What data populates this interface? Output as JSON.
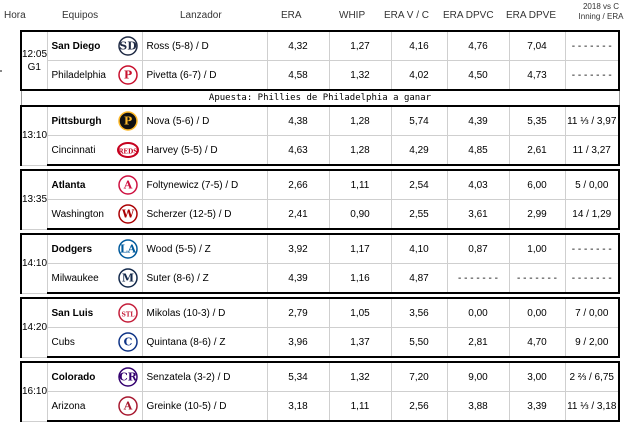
{
  "headers": {
    "hora": "Hora",
    "equipos": "Equipos",
    "lanzador": "Lanzador",
    "era": "ERA",
    "whip": "WHIP",
    "era_vc": "ERA V / C",
    "era_dpvc": "ERA DPVC",
    "era_dpve": "ERA DPVE",
    "last_line1": "2018 vs C",
    "last_line2": "Inning / ERA"
  },
  "bet_text": "Apuesta: Phillies de Philadelphia a ganar",
  "games": [
    {
      "time": "12:05",
      "time2": "G1",
      "rows": [
        {
          "team": "San Diego",
          "bold": true,
          "logo": "padres-logo",
          "logo_color": "#1f2a44",
          "logo_text": "SD",
          "pitcher": "Ross (5-8) / D",
          "era": "4,32",
          "whip": "1,27",
          "era_vc": "4,16",
          "era_dpvc": "4,76",
          "era_dpve": "7,04",
          "last": "- - - - - - -"
        },
        {
          "team": "Philadelphia",
          "bold": false,
          "logo": "phillies-logo",
          "logo_color": "#c8102e",
          "logo_text": "P",
          "pitcher": "Pivetta (6-7) / D",
          "era": "4,58",
          "whip": "1,32",
          "era_vc": "4,02",
          "era_dpvc": "4,50",
          "era_dpve": "4,73",
          "last": "- - - - - - -"
        }
      ]
    },
    {
      "time": "13:10",
      "time2": "",
      "rows": [
        {
          "team": "Pittsburgh",
          "bold": true,
          "logo": "pirates-logo",
          "logo_color": "#fdb827",
          "logo_text": "P",
          "pitcher": "Nova (5-6) / D",
          "era": "4,38",
          "whip": "1,28",
          "era_vc": "5,74",
          "era_dpvc": "4,39",
          "era_dpve": "5,35",
          "last": "11 ⅓ / 3,97"
        },
        {
          "team": "Cincinnati",
          "bold": false,
          "logo": "reds-logo",
          "logo_color": "#c6011f",
          "logo_text": "REDS",
          "pitcher": "Harvey (5-5) / D",
          "era": "4,63",
          "whip": "1,28",
          "era_vc": "4,29",
          "era_dpvc": "4,85",
          "era_dpve": "2,61",
          "last": "11 / 3,27"
        }
      ]
    },
    {
      "time": "13:35",
      "time2": "",
      "rows": [
        {
          "team": "Atlanta",
          "bold": true,
          "logo": "braves-logo",
          "logo_color": "#ce1141",
          "logo_text": "A",
          "pitcher": "Foltynewicz (7-5) / D",
          "era": "2,66",
          "whip": "1,11",
          "era_vc": "2,54",
          "era_dpvc": "4,03",
          "era_dpve": "6,00",
          "last": "5 / 0,00"
        },
        {
          "team": "Washington",
          "bold": false,
          "logo": "nationals-logo",
          "logo_color": "#ab0003",
          "logo_text": "W",
          "pitcher": "Scherzer (12-5) / D",
          "era": "2,41",
          "whip": "0,90",
          "era_vc": "2,55",
          "era_dpvc": "3,61",
          "era_dpve": "2,99",
          "last": "14 / 1,29"
        }
      ]
    },
    {
      "time": "14:10",
      "time2": "",
      "rows": [
        {
          "team": "Dodgers",
          "bold": true,
          "logo": "dodgers-logo",
          "logo_color": "#005a9c",
          "logo_text": "LA",
          "pitcher": "Wood (5-5) / Z",
          "era": "3,92",
          "whip": "1,17",
          "era_vc": "4,10",
          "era_dpvc": "0,87",
          "era_dpve": "1,00",
          "last": "- - - - - - -"
        },
        {
          "team": "Milwaukee",
          "bold": false,
          "logo": "brewers-logo",
          "logo_color": "#13294b",
          "logo_text": "M",
          "pitcher": "Suter (8-6) / Z",
          "era": "4,39",
          "whip": "1,16",
          "era_vc": "4,87",
          "era_dpvc": "- - - - - - -",
          "era_dpve": "- - - - - - -",
          "last": "- - - - - - -"
        }
      ]
    },
    {
      "time": "14:20",
      "time2": "",
      "rows": [
        {
          "team": "San Luis",
          "bold": true,
          "logo": "cardinals-logo",
          "logo_color": "#c41e3a",
          "logo_text": "STL",
          "pitcher": "Mikolas (10-3) / D",
          "era": "2,79",
          "whip": "1,05",
          "era_vc": "3,56",
          "era_dpvc": "0,00",
          "era_dpve": "0,00",
          "last": "7 / 0,00"
        },
        {
          "team": "Cubs",
          "bold": false,
          "logo": "cubs-logo",
          "logo_color": "#0e3386",
          "logo_text": "C",
          "pitcher": "Quintana (8-6) / Z",
          "era": "3,96",
          "whip": "1,37",
          "era_vc": "5,50",
          "era_dpvc": "2,81",
          "era_dpve": "4,70",
          "last": "9 / 2,00"
        }
      ]
    },
    {
      "time": "16:10",
      "time2": "",
      "rows": [
        {
          "team": "Colorado",
          "bold": true,
          "logo": "rockies-logo",
          "logo_color": "#33006f",
          "logo_text": "CR",
          "pitcher": "Senzatela (3-2) / D",
          "era": "5,34",
          "whip": "1,32",
          "era_vc": "7,20",
          "era_dpvc": "9,00",
          "era_dpve": "3,00",
          "last": "2 ⅔ / 6,75"
        },
        {
          "team": "Arizona",
          "bold": false,
          "logo": "diamondbacks-logo",
          "logo_color": "#a71930",
          "logo_text": "A",
          "pitcher": "Greinke (10-5) / D",
          "era": "3,18",
          "whip": "1,11",
          "era_vc": "2,56",
          "era_dpvc": "3,88",
          "era_dpve": "3,39",
          "last": "11 ⅓ / 3,18"
        }
      ]
    }
  ]
}
